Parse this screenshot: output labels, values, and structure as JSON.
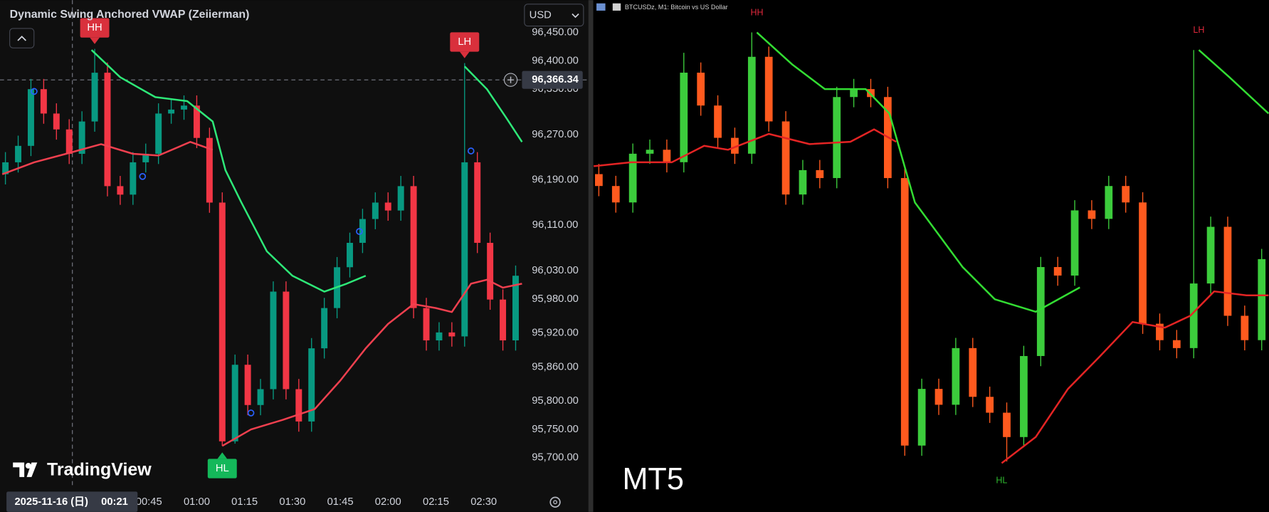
{
  "chart_data": [
    {
      "type": "candlestick",
      "title": "Dynamic Swing Anchored VWAP (Zeiierman)",
      "currency": "USD",
      "watermark": "TradingView",
      "up_color": "#089981",
      "down_color": "#f23645",
      "x": [
        0,
        4,
        8,
        12,
        16,
        20,
        24,
        28,
        32,
        36,
        40,
        44,
        48,
        52,
        56,
        60,
        64,
        68,
        72,
        76,
        80,
        84,
        88,
        92,
        96,
        100,
        104,
        108,
        112,
        116,
        120,
        124,
        128,
        132,
        136,
        140,
        144,
        148,
        152,
        156,
        160
      ],
      "open": [
        96200,
        96221,
        96250,
        96350,
        96307,
        96279,
        96236,
        96293,
        96379,
        96179,
        96164,
        96221,
        96236,
        96307,
        96314,
        96321,
        96264,
        96150,
        95729,
        95864,
        95793,
        95821,
        95993,
        95821,
        95764,
        95893,
        95964,
        96036,
        96079,
        96121,
        96150,
        96136,
        96179,
        95964,
        95907,
        95921,
        95914,
        96221,
        96079,
        95979,
        95907
      ],
      "high": [
        96239,
        96268,
        96368,
        96368,
        96325,
        96297,
        96311,
        96421,
        96397,
        96197,
        96239,
        96254,
        96325,
        96332,
        96339,
        96339,
        96282,
        96168,
        95882,
        95882,
        95839,
        96011,
        96011,
        95839,
        95911,
        95982,
        96054,
        96097,
        96139,
        96168,
        96168,
        96197,
        96197,
        95982,
        95939,
        95939,
        96396,
        96239,
        96097,
        95997,
        96039
      ],
      "low": [
        96182,
        96203,
        96232,
        96289,
        96261,
        96218,
        96218,
        96275,
        96161,
        96146,
        96146,
        96203,
        96218,
        96289,
        96296,
        96246,
        96132,
        95721,
        95725,
        95775,
        95775,
        95803,
        95803,
        95746,
        95746,
        95875,
        95946,
        96018,
        96061,
        96103,
        96118,
        96118,
        95946,
        95889,
        95889,
        95896,
        95896,
        96061,
        95961,
        95889,
        95889
      ],
      "close": [
        96221,
        96250,
        96350,
        96307,
        96279,
        96236,
        96293,
        96379,
        96179,
        96164,
        96221,
        96236,
        96307,
        96314,
        96321,
        96264,
        96150,
        95729,
        95864,
        95793,
        95821,
        95993,
        95821,
        95764,
        95893,
        95964,
        96036,
        96079,
        96121,
        96150,
        96136,
        96179,
        95964,
        95907,
        95921,
        95914,
        96221,
        96079,
        95979,
        95907,
        96021
      ],
      "xlim": [
        -1.7,
        162
      ],
      "ylim": [
        95646,
        96507
      ],
      "xticks": [
        {
          "value": 45,
          "label": "00:45"
        },
        {
          "value": 60,
          "label": "01:00"
        },
        {
          "value": 75,
          "label": "01:15"
        },
        {
          "value": 90,
          "label": "01:30"
        },
        {
          "value": 105,
          "label": "01:45"
        },
        {
          "value": 120,
          "label": "02:00"
        },
        {
          "value": 135,
          "label": "02:15"
        },
        {
          "value": 150,
          "label": "02:30"
        }
      ],
      "yticks": [
        {
          "value": 96450,
          "label": "96,450.00"
        },
        {
          "value": 96400,
          "label": "96,400.00"
        },
        {
          "value": 96350,
          "label": "96,350.00"
        },
        {
          "value": 96270,
          "label": "96,270.00"
        },
        {
          "value": 96190,
          "label": "96,190.00"
        },
        {
          "value": 96110,
          "label": "96,110.00"
        },
        {
          "value": 96030,
          "label": "96,030.00"
        },
        {
          "value": 95980,
          "label": "95,980.00"
        },
        {
          "value": 95920,
          "label": "95,920.00"
        },
        {
          "value": 95860,
          "label": "95,860.00"
        },
        {
          "value": 95800,
          "label": "95,800.00"
        },
        {
          "value": 95750,
          "label": "95,750.00"
        },
        {
          "value": 95700,
          "label": "95,700.00"
        }
      ],
      "lines": [
        {
          "color": "#2ee878",
          "x": [
            27,
            36,
            47,
            57,
            65,
            69,
            74,
            82,
            90,
            100,
            107,
            113
          ],
          "values": [
            96419,
            96371,
            96336,
            96329,
            96293,
            96207,
            96150,
            96064,
            96021,
            95993,
            96007,
            96021
          ]
        },
        {
          "color": "#2ee878",
          "x": [
            144,
            151,
            157,
            162
          ],
          "values": [
            96390,
            96350,
            96300,
            96257
          ]
        },
        {
          "color": "#f0404f",
          "x": [
            -1,
            9,
            19,
            30,
            40,
            48,
            58,
            65
          ],
          "values": [
            96200,
            96221,
            96236,
            96253,
            96236,
            96233,
            96257,
            96243
          ]
        },
        {
          "color": "#f0404f",
          "x": [
            68,
            77,
            87,
            97,
            105,
            113,
            120,
            128,
            135,
            140,
            146,
            151,
            156,
            162
          ],
          "values": [
            95721,
            95750,
            95767,
            95786,
            95836,
            95893,
            95936,
            95971,
            95964,
            95957,
            96007,
            96014,
            96000,
            96007
          ]
        }
      ],
      "markers": {
        "color": "#2962ff",
        "x": [
          9,
          43,
          77,
          111,
          146
        ],
        "values": [
          96346,
          96196,
          95779,
          96099,
          96241
        ]
      },
      "annotations": [
        {
          "text": "HH",
          "x": 28,
          "value": 96421,
          "color": "#d9303c",
          "position": "above"
        },
        {
          "text": "HL",
          "x": 68,
          "value": 95721,
          "color": "#14b85a",
          "position": "below"
        },
        {
          "text": "LH",
          "x": 144,
          "value": 96396,
          "color": "#d9303c",
          "position": "above"
        }
      ],
      "crosshair": {
        "x": 21,
        "value": {
          "value": 96366.34,
          "label": "96,366.34"
        },
        "date": "2025-11-16 (日)",
        "time": "00:21"
      }
    },
    {
      "type": "candlestick",
      "title": "BTCUSDz, M1:  Bitcoin vs US Dollar",
      "watermark": "MT5",
      "up_color": "#3ccc3c",
      "down_color": "#ff5a1e",
      "x": [
        0,
        1,
        2,
        3,
        4,
        5,
        6,
        7,
        8,
        9,
        10,
        11,
        12,
        13,
        14,
        15,
        16,
        17,
        18,
        19,
        20,
        21,
        22,
        23,
        24,
        25,
        26,
        27,
        28,
        29,
        30,
        31,
        32,
        33,
        34,
        35,
        36,
        37,
        38,
        39
      ],
      "open": [
        96200,
        96179,
        96150,
        96236,
        96243,
        96221,
        96379,
        96321,
        96264,
        96236,
        96407,
        96293,
        96164,
        96207,
        96193,
        96336,
        96350,
        96336,
        96193,
        95721,
        95821,
        95793,
        95893,
        95807,
        95779,
        95736,
        95879,
        96036,
        96021,
        96136,
        96121,
        96179,
        96150,
        95936,
        95907,
        95893,
        96007,
        96107,
        95950,
        95907
      ],
      "high": [
        96218,
        96197,
        96254,
        96261,
        96261,
        96414,
        96397,
        96339,
        96282,
        96450,
        96425,
        96311,
        96225,
        96225,
        96354,
        96368,
        96368,
        96354,
        96211,
        95839,
        95839,
        95911,
        95911,
        95825,
        95797,
        95897,
        96054,
        96054,
        96154,
        96154,
        96197,
        96197,
        96168,
        95954,
        95925,
        96419,
        96125,
        96125,
        95968,
        96068
      ],
      "low": [
        96161,
        96132,
        96132,
        96218,
        96203,
        96203,
        96303,
        96246,
        96218,
        96218,
        96275,
        96146,
        96146,
        96175,
        96175,
        96318,
        96318,
        96175,
        95703,
        95703,
        95775,
        95775,
        95789,
        95761,
        95693,
        95718,
        95861,
        96003,
        96003,
        96103,
        96103,
        96132,
        95918,
        95889,
        95875,
        95875,
        95989,
        95932,
        95889,
        95889
      ],
      "close": [
        96179,
        96150,
        96236,
        96243,
        96221,
        96379,
        96321,
        96264,
        96236,
        96407,
        96293,
        96164,
        96207,
        96193,
        96336,
        96350,
        96336,
        96193,
        95721,
        95821,
        95793,
        95893,
        95807,
        95779,
        95736,
        95879,
        96036,
        96021,
        96136,
        96121,
        96179,
        96150,
        95936,
        95907,
        95893,
        96007,
        96107,
        95950,
        95907,
        96050
      ],
      "xlim": [
        -0.33,
        39.43
      ],
      "ylim": [
        95604,
        96507
      ],
      "lines": [
        {
          "color": "#33dd33",
          "x": [
            9.3,
            11.4,
            13.3,
            15.7,
            17.1,
            18.6,
            20,
            21.4,
            23.3,
            25.7,
            28.3
          ],
          "values": [
            96450,
            96393,
            96350,
            96350,
            96307,
            96150,
            96093,
            96036,
            95979,
            95957,
            96000
          ]
        },
        {
          "color": "#33dd33",
          "x": [
            35.3,
            37.1,
            39.4
          ],
          "values": [
            96419,
            96371,
            96307
          ]
        },
        {
          "color": "#e42424",
          "x": [
            -0.3,
            1.9,
            4.3,
            6.2,
            7.6,
            10,
            12.4,
            14.8,
            16.2,
            17.5
          ],
          "values": [
            96214,
            96221,
            96221,
            96250,
            96243,
            96271,
            96253,
            96257,
            96279,
            96257
          ]
        },
        {
          "color": "#e42424",
          "x": [
            23.7,
            25.7,
            27.6,
            29.5,
            31.4,
            33.3,
            34.8,
            36.2,
            38.1,
            39.4
          ],
          "values": [
            95690,
            95736,
            95821,
            95879,
            95939,
            95929,
            95950,
            95993,
            95986,
            95986
          ]
        }
      ],
      "annotations": [
        {
          "text": "HH",
          "x": 9.3,
          "value": 96450,
          "color": "#e0283c",
          "position": "above"
        },
        {
          "text": "LH",
          "x": 35.3,
          "value": 96419,
          "color": "#e0283c",
          "position": "above"
        },
        {
          "text": "HL",
          "x": 23.7,
          "value": 95693,
          "color": "#2fb82f",
          "position": "below"
        }
      ]
    }
  ]
}
